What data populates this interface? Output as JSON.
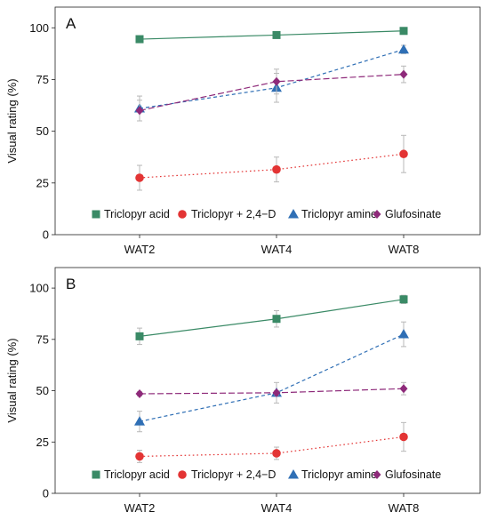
{
  "chart_data": [
    {
      "type": "line",
      "panel_label": "A",
      "categories": [
        "WAT2",
        "WAT4",
        "WAT8"
      ],
      "ylabel": "Visual rating (%)",
      "xlabel": "",
      "ylim": [
        0,
        110
      ],
      "yticks": [
        0,
        25,
        50,
        75,
        100
      ],
      "grid": false,
      "legend_position": "bottom",
      "series": [
        {
          "name": "Triclopyr acid",
          "values": [
            94.5,
            96.5,
            98.5
          ],
          "errors": [
            1,
            1,
            1
          ],
          "color": "#3a8a66",
          "marker": "square",
          "line": "solid"
        },
        {
          "name": "Triclopyr + 2,4−D",
          "values": [
            27.5,
            31.5,
            39
          ],
          "errors": [
            6,
            6,
            9
          ],
          "color": "#e33434",
          "marker": "circle",
          "line": "dotted"
        },
        {
          "name": "Triclopyr amine",
          "values": [
            61,
            71,
            89.5
          ],
          "errors": [
            6,
            7,
            2
          ],
          "color": "#2f6fb5",
          "marker": "triangle",
          "line": "dashed"
        },
        {
          "name": "Glufosinate",
          "values": [
            60,
            74,
            77.5
          ],
          "errors": [
            5,
            6,
            4
          ],
          "color": "#8e2a7a",
          "marker": "diamond",
          "line": "longdash"
        }
      ]
    },
    {
      "type": "line",
      "panel_label": "B",
      "categories": [
        "WAT2",
        "WAT4",
        "WAT8"
      ],
      "ylabel": "Visual rating (%)",
      "xlabel": "",
      "ylim": [
        0,
        110
      ],
      "yticks": [
        0,
        25,
        50,
        75,
        100
      ],
      "grid": false,
      "legend_position": "bottom",
      "series": [
        {
          "name": "Triclopyr acid",
          "values": [
            76.5,
            85,
            94.5
          ],
          "errors": [
            4,
            4,
            2
          ],
          "color": "#3a8a66",
          "marker": "square",
          "line": "solid"
        },
        {
          "name": "Triclopyr + 2,4−D",
          "values": [
            18,
            19.5,
            27.5
          ],
          "errors": [
            3,
            3,
            7
          ],
          "color": "#e33434",
          "marker": "circle",
          "line": "dotted"
        },
        {
          "name": "Triclopyr amine",
          "values": [
            35,
            49,
            77.5
          ],
          "errors": [
            5,
            5,
            6
          ],
          "color": "#2f6fb5",
          "marker": "triangle",
          "line": "dashed"
        },
        {
          "name": "Glufosinate",
          "values": [
            48.5,
            49,
            51
          ],
          "errors": [
            1,
            1,
            3
          ],
          "color": "#8e2a7a",
          "marker": "diamond",
          "line": "longdash"
        }
      ]
    }
  ]
}
